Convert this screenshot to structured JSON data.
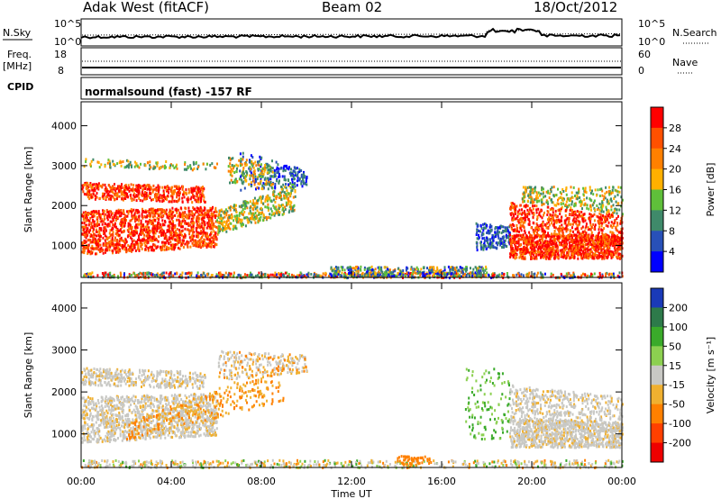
{
  "header": {
    "station": "Adak West (fitACF)",
    "beam": "Beam 02",
    "date": "18/Oct/2012"
  },
  "panels": {
    "nsky_label": "N.Sky",
    "nsky_ticks": [
      "10^5",
      "10^0"
    ],
    "nsearch_label": "N.Search",
    "freq_label_1": "Freq.",
    "freq_label_2": "[MHz]",
    "freq_ticks": [
      "18",
      "8"
    ],
    "nave_label": "Nave",
    "nave_ticks": [
      "60",
      "0"
    ],
    "cpid_label": "CPID",
    "cpid_text": "normalsound (fast) -157 RF"
  },
  "chart_data": [
    {
      "type": "heatmap",
      "name": "power",
      "xlabel": "Time UT",
      "ylabel": "Slant Range [km]",
      "xlim": [
        0,
        24
      ],
      "ylim": [
        200,
        4600
      ],
      "x_ticks": [
        "00:00",
        "04:00",
        "08:00",
        "12:00",
        "16:00",
        "20:00",
        "00:00"
      ],
      "y_ticks": [
        1000,
        2000,
        3000,
        4000
      ],
      "colorbar_label": "Power [dB]",
      "colorbar_ticks": [
        4,
        8,
        12,
        16,
        20,
        24,
        28
      ],
      "colorbar_colors": [
        "#0000ff",
        "#2850b8",
        "#3f8a6a",
        "#5fbf3a",
        "#ffb000",
        "#ff8000",
        "#ff5000",
        "#ff0000"
      ]
    },
    {
      "type": "heatmap",
      "name": "velocity",
      "xlabel": "Time UT",
      "ylabel": "Slant Range [km]",
      "xlim": [
        0,
        24
      ],
      "ylim": [
        200,
        4600
      ],
      "x_ticks": [
        "00:00",
        "04:00",
        "08:00",
        "12:00",
        "16:00",
        "20:00",
        "00:00"
      ],
      "y_ticks": [
        1000,
        2000,
        3000,
        4000
      ],
      "colorbar_label": "Velocity [m s⁻¹]",
      "colorbar_ticks": [
        "200",
        "100",
        "50",
        "15",
        "-15",
        "-50",
        "-100",
        "-200"
      ],
      "colorbar_colors": [
        "#1a3ab8",
        "#2d7a4a",
        "#3aaa2a",
        "#8cd050",
        "#c8c8c4",
        "#f0b030",
        "#ff8000",
        "#ff4000",
        "#ee0000"
      ]
    }
  ]
}
